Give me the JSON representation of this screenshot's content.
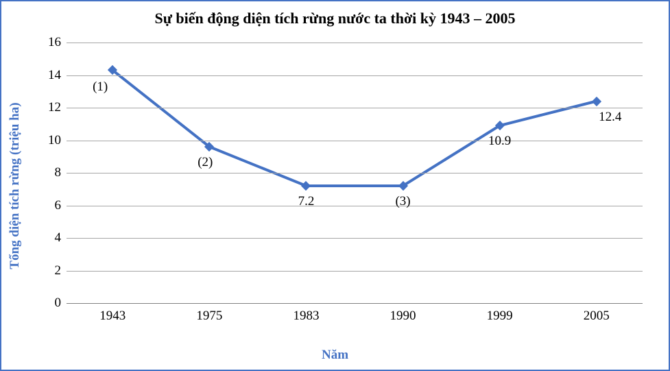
{
  "chart": {
    "type": "line",
    "title": "Sự biến động diện tích rừng nước ta thời kỳ 1943 – 2005",
    "title_fontsize": 22,
    "xlabel": "Năm",
    "ylabel": "Tổng diện tích rừng (triệu ha)",
    "label_fontsize": 19,
    "label_color": "#4472c4",
    "tick_fontsize": 19,
    "ylim": [
      0,
      16
    ],
    "ytick_step": 2,
    "yticks": [
      0,
      2,
      4,
      6,
      8,
      10,
      12,
      14,
      16
    ],
    "categories": [
      "1943",
      "1975",
      "1983",
      "1990",
      "1999",
      "2005"
    ],
    "values": [
      14.3,
      9.6,
      7.2,
      7.2,
      10.9,
      12.4
    ],
    "point_labels": [
      "(1)",
      "(2)",
      "7.2",
      "(3)",
      "10.9",
      "12.4"
    ],
    "point_label_offset_y": [
      24,
      22,
      22,
      22,
      22,
      22
    ],
    "point_label_offset_x": [
      -18,
      -6,
      0,
      0,
      0,
      20
    ],
    "line_color": "#4472c4",
    "line_width": 4,
    "marker_color": "#4472c4",
    "marker_size": 10,
    "grid_color": "#a6a6a6",
    "axis_color": "#808080",
    "background_color": "#ffffff",
    "border_color": "#4472c4"
  }
}
